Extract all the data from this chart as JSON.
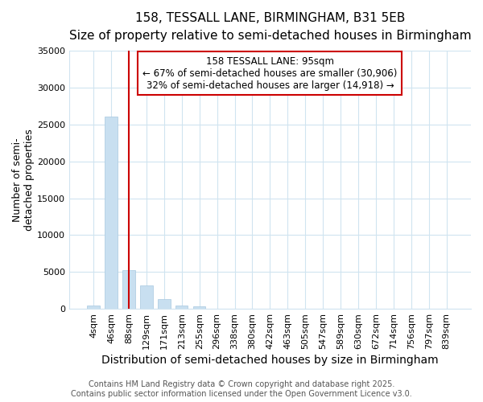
{
  "title": "158, TESSALL LANE, BIRMINGHAM, B31 5EB",
  "subtitle": "Size of property relative to semi-detached houses in Birmingham",
  "xlabel": "Distribution of semi-detached houses by size in Birmingham",
  "ylabel": "Number of semi-\ndetached properties",
  "categories": [
    "4sqm",
    "46sqm",
    "88sqm",
    "129sqm",
    "171sqm",
    "213sqm",
    "255sqm",
    "296sqm",
    "338sqm",
    "380sqm",
    "422sqm",
    "463sqm",
    "505sqm",
    "547sqm",
    "589sqm",
    "630sqm",
    "672sqm",
    "714sqm",
    "756sqm",
    "797sqm",
    "839sqm"
  ],
  "values": [
    430,
    26100,
    5200,
    3200,
    1300,
    480,
    300,
    0,
    0,
    0,
    0,
    0,
    0,
    0,
    0,
    0,
    0,
    0,
    0,
    0,
    0
  ],
  "bar_color": "#c8dff0",
  "bar_edge_color": "#a8c8e0",
  "vline_x": 2.0,
  "vline_color": "#cc0000",
  "annotation_title": "158 TESSALL LANE: 95sqm",
  "annotation_line1": "← 67% of semi-detached houses are smaller (30,906)",
  "annotation_line2": "32% of semi-detached houses are larger (14,918) →",
  "annotation_box_color": "#ffffff",
  "annotation_box_edge_color": "#cc0000",
  "ylim": [
    0,
    35000
  ],
  "yticks": [
    0,
    5000,
    10000,
    15000,
    20000,
    25000,
    30000,
    35000
  ],
  "footer_line1": "Contains HM Land Registry data © Crown copyright and database right 2025.",
  "footer_line2": "Contains public sector information licensed under the Open Government Licence v3.0.",
  "bg_color": "#ffffff",
  "plot_bg_color": "#ffffff",
  "grid_color": "#d0e4f0",
  "title_fontsize": 11,
  "subtitle_fontsize": 9.5,
  "xlabel_fontsize": 10,
  "ylabel_fontsize": 9,
  "tick_fontsize": 8,
  "annotation_fontsize": 8.5,
  "footer_fontsize": 7
}
